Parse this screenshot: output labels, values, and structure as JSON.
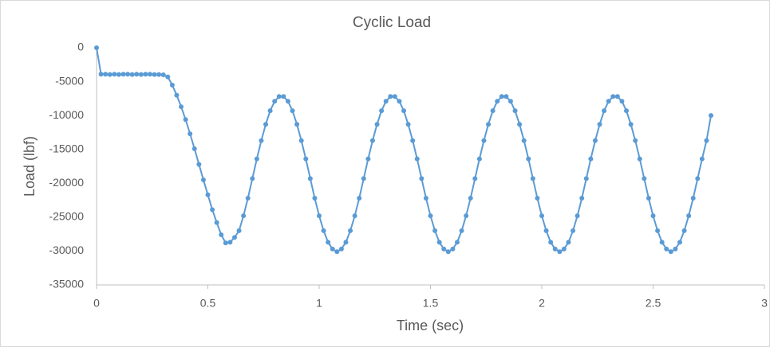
{
  "chart_data": {
    "type": "line",
    "title": "Cyclic Load",
    "x_label": "Time (sec)",
    "y_label": "Load (lbf)",
    "xlim": [
      0,
      3
    ],
    "xticks": [
      0,
      0.5,
      1,
      1.5,
      2,
      2.5,
      3
    ],
    "ylim": [
      -35000,
      0
    ],
    "yticks": [
      -35000,
      -30000,
      -25000,
      -20000,
      -15000,
      -10000,
      -5000,
      0
    ],
    "grid": false,
    "series": [
      {
        "color": "#5b9bd5",
        "x": [
          0,
          0.02,
          0.04,
          0.06,
          0.08,
          0.1,
          0.12,
          0.14,
          0.16,
          0.18,
          0.2,
          0.22,
          0.24,
          0.26,
          0.28,
          0.3,
          0.32,
          0.34,
          0.36,
          0.38,
          0.4,
          0.42,
          0.44,
          0.46,
          0.48,
          0.5,
          0.52,
          0.54,
          0.56,
          0.58,
          0.6,
          0.62,
          0.64,
          0.66,
          0.68,
          0.7,
          0.72,
          0.74,
          0.76,
          0.78,
          0.8,
          0.82,
          0.84,
          0.86,
          0.88,
          0.9,
          0.92,
          0.94,
          0.96,
          0.98,
          1,
          1.02,
          1.04,
          1.06,
          1.08,
          1.1,
          1.12,
          1.14,
          1.16,
          1.18,
          1.2,
          1.22,
          1.24,
          1.26,
          1.28,
          1.3,
          1.32,
          1.34,
          1.36,
          1.38,
          1.4,
          1.42,
          1.44,
          1.46,
          1.48,
          1.5,
          1.52,
          1.54,
          1.56,
          1.58,
          1.6,
          1.62,
          1.64,
          1.66,
          1.68,
          1.7,
          1.72,
          1.74,
          1.76,
          1.78,
          1.8,
          1.82,
          1.84,
          1.86,
          1.88,
          1.9,
          1.92,
          1.94,
          1.96,
          1.98,
          2,
          2.02,
          2.04,
          2.06,
          2.08,
          2.1,
          2.12,
          2.14,
          2.16,
          2.18,
          2.2,
          2.22,
          2.24,
          2.26,
          2.28,
          2.3,
          2.32,
          2.34,
          2.36,
          2.38,
          2.4,
          2.42,
          2.44,
          2.46,
          2.48,
          2.5,
          2.52,
          2.54,
          2.56,
          2.58,
          2.6,
          2.62,
          2.64,
          2.66,
          2.68,
          2.7,
          2.72,
          2.74,
          2.76
        ],
        "values": [
          0,
          -3900,
          -3900,
          -3950,
          -3900,
          -3950,
          -3900,
          -3900,
          -3950,
          -3900,
          -3950,
          -3900,
          -3900,
          -3950,
          -3950,
          -4000,
          -4300,
          -5500,
          -7000,
          -8700,
          -10600,
          -12700,
          -14900,
          -17200,
          -19500,
          -21700,
          -23900,
          -25800,
          -27600,
          -28800,
          -28700,
          -28000,
          -27000,
          -24800,
          -22200,
          -19300,
          -16400,
          -13700,
          -11300,
          -9300,
          -7900,
          -7200,
          -7200,
          -7900,
          -9300,
          -11300,
          -13700,
          -16400,
          -19300,
          -22200,
          -24800,
          -27000,
          -28700,
          -29700,
          -30100,
          -29700,
          -28700,
          -27000,
          -24800,
          -22200,
          -19300,
          -16400,
          -13700,
          -11300,
          -9300,
          -7900,
          -7200,
          -7200,
          -7900,
          -9300,
          -11300,
          -13700,
          -16400,
          -19300,
          -22200,
          -24800,
          -27000,
          -28700,
          -29700,
          -30100,
          -29700,
          -28700,
          -27000,
          -24800,
          -22200,
          -19300,
          -16400,
          -13700,
          -11300,
          -9300,
          -7900,
          -7200,
          -7200,
          -7900,
          -9300,
          -11300,
          -13700,
          -16400,
          -19300,
          -22200,
          -24800,
          -27000,
          -28700,
          -29700,
          -30100,
          -29700,
          -28700,
          -27000,
          -24800,
          -22200,
          -19300,
          -16400,
          -13700,
          -11300,
          -9300,
          -7900,
          -7200,
          -7200,
          -7900,
          -9300,
          -11300,
          -13700,
          -16400,
          -19300,
          -22200,
          -24800,
          -27000,
          -28700,
          -29700,
          -30100,
          -29700,
          -28700,
          -27000,
          -24800,
          -22200,
          -19300,
          -16400,
          -13700,
          -10000
        ]
      }
    ]
  }
}
